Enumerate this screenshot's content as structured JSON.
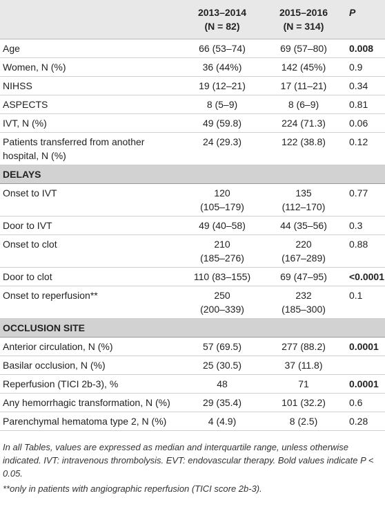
{
  "table": {
    "header": [
      [
        "2013–2014",
        "(N = 82)"
      ],
      [
        "2015–2016",
        "(N = 314)"
      ],
      "P"
    ],
    "rows": [
      {
        "cells": [
          "Age",
          "66 (53–74)",
          "69 (57–80)",
          "0.008"
        ],
        "bold": true
      },
      {
        "cells": [
          "Women, N (%)",
          "36 (44%)",
          "142 (45%)",
          "0.9"
        ]
      },
      {
        "cells": [
          "NIHSS",
          "19 (12–21)",
          "17 (11–21)",
          "0.34"
        ]
      },
      {
        "cells": [
          "ASPECTS",
          "8 (5–9)",
          "8 (6–9)",
          "0.81"
        ]
      },
      {
        "cells": [
          "IVT, N (%)",
          "49 (59.8)",
          "224 (71.3)",
          "0.06"
        ]
      },
      {
        "cells": [
          [
            "Patients transferred from another",
            "hospital, N (%)"
          ],
          "24 (29.3)",
          "122 (38.8)",
          "0.12"
        ]
      },
      {
        "section": "DELAYS"
      },
      {
        "cells": [
          "Onset to IVT",
          [
            "120",
            "(105–179)"
          ],
          [
            "135",
            "(112–170)"
          ],
          "0.77"
        ]
      },
      {
        "cells": [
          "Door to IVT",
          "49 (40–58)",
          "44 (35–56)",
          "0.3"
        ]
      },
      {
        "cells": [
          "Onset to clot",
          [
            "210",
            "(185–276)"
          ],
          [
            "220",
            "(167–289)"
          ],
          "0.88"
        ]
      },
      {
        "cells": [
          "Door to clot",
          "110 (83–155)",
          "69 (47–95)",
          "<0.0001"
        ],
        "bold": true
      },
      {
        "cells": [
          "Onset to reperfusion**",
          [
            "250",
            "(200–339)"
          ],
          [
            "232",
            "(185–300)"
          ],
          "0.1"
        ]
      },
      {
        "section": "OCCLUSION SITE"
      },
      {
        "cells": [
          "Anterior circulation, N (%)",
          "57 (69.5)",
          "277 (88.2)",
          "0.0001"
        ],
        "bold": true
      },
      {
        "cells": [
          "Basilar occlusion, N (%)",
          "25 (30.5)",
          "37 (11.8)"
        ]
      },
      {
        "cells": [
          "Reperfusion (TICI 2b-3), %",
          "48",
          "71",
          "0.0001"
        ],
        "bold": true
      },
      {
        "cells": [
          "Any hemorrhagic transformation, N (%)",
          "29 (35.4)",
          "101 (32.2)",
          "0.6"
        ]
      },
      {
        "cells": [
          "Parenchymal hematoma type 2, N (%)",
          "4 (4.9)",
          "8 (2.5)",
          "0.28"
        ]
      }
    ],
    "notes": [
      "In all Tables, values are expressed as median and interquartile range, unless otherwise indicated. IVT: intravenous thrombolysis. EVT: endovascular therapy. Bold values indicate P < 0.05.",
      "**only in patients with angiographic reperfusion (TICI score 2b-3)."
    ]
  }
}
